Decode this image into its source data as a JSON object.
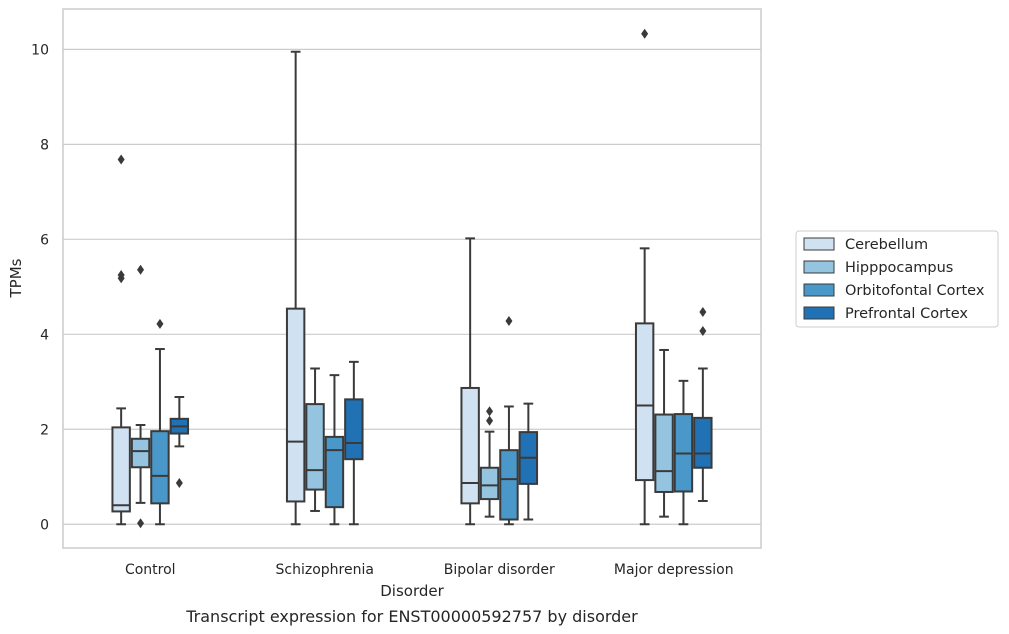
{
  "caption": "Transcript expression for ENST00000592757 by disorder",
  "chart_data": {
    "type": "box",
    "xlabel": "Disorder",
    "ylabel": "TPMs",
    "ylim": [
      -0.5,
      10.85
    ],
    "yticks": [
      0,
      2,
      4,
      6,
      8,
      10
    ],
    "grid": "horizontal",
    "legend_placement": "right",
    "categories": [
      "Control",
      "Schizophrenia",
      "Bipolar disorder",
      "Major depression"
    ],
    "series": [
      {
        "name": "Cerebellum",
        "color": "#d0e1f2",
        "boxes": [
          {
            "whisker_low": 0.0,
            "q1": 0.27,
            "median": 0.4,
            "q3": 2.04,
            "whisker_high": 2.44,
            "outliers": [
              7.68,
              5.25,
              5.18
            ]
          },
          {
            "whisker_low": 0.0,
            "q1": 0.48,
            "median": 1.74,
            "q3": 4.54,
            "whisker_high": 9.95,
            "outliers": []
          },
          {
            "whisker_low": 0.0,
            "q1": 0.44,
            "median": 0.87,
            "q3": 2.87,
            "whisker_high": 6.02,
            "outliers": []
          },
          {
            "whisker_low": 0.0,
            "q1": 0.93,
            "median": 2.5,
            "q3": 4.23,
            "whisker_high": 5.81,
            "outliers": [
              10.33
            ]
          }
        ]
      },
      {
        "name": "Hipppocampus",
        "color": "#94c4df",
        "boxes": [
          {
            "whisker_low": 0.45,
            "q1": 1.2,
            "median": 1.54,
            "q3": 1.8,
            "whisker_high": 2.09,
            "outliers": [
              5.36,
              0.02
            ]
          },
          {
            "whisker_low": 0.28,
            "q1": 0.73,
            "median": 1.14,
            "q3": 2.53,
            "whisker_high": 3.28,
            "outliers": []
          },
          {
            "whisker_low": 0.16,
            "q1": 0.53,
            "median": 0.82,
            "q3": 1.19,
            "whisker_high": 1.95,
            "outliers": [
              2.38,
              2.18
            ]
          },
          {
            "whisker_low": 0.16,
            "q1": 0.68,
            "median": 1.12,
            "q3": 2.31,
            "whisker_high": 3.67,
            "outliers": []
          }
        ]
      },
      {
        "name": "Orbitofontal Cortex",
        "color": "#4a98c9",
        "boxes": [
          {
            "whisker_low": 0.0,
            "q1": 0.44,
            "median": 1.02,
            "q3": 1.96,
            "whisker_high": 3.69,
            "outliers": [
              4.22
            ]
          },
          {
            "whisker_low": 0.0,
            "q1": 0.36,
            "median": 1.56,
            "q3": 1.84,
            "whisker_high": 3.14,
            "outliers": []
          },
          {
            "whisker_low": 0.0,
            "q1": 0.1,
            "median": 0.95,
            "q3": 1.56,
            "whisker_high": 2.48,
            "outliers": [
              4.28
            ]
          },
          {
            "whisker_low": 0.0,
            "q1": 0.69,
            "median": 1.49,
            "q3": 2.32,
            "whisker_high": 3.02,
            "outliers": []
          }
        ]
      },
      {
        "name": "Prefrontal Cortex",
        "color": "#2171b5",
        "boxes": [
          {
            "whisker_low": 1.64,
            "q1": 1.91,
            "median": 2.06,
            "q3": 2.22,
            "whisker_high": 2.68,
            "outliers": [
              0.87
            ]
          },
          {
            "whisker_low": 0.0,
            "q1": 1.37,
            "median": 1.71,
            "q3": 2.63,
            "whisker_high": 3.42,
            "outliers": []
          },
          {
            "whisker_low": 0.1,
            "q1": 0.85,
            "median": 1.4,
            "q3": 1.94,
            "whisker_high": 2.54,
            "outliers": []
          },
          {
            "whisker_low": 0.49,
            "q1": 1.19,
            "median": 1.49,
            "q3": 2.24,
            "whisker_high": 3.28,
            "outliers": [
              4.47,
              4.07
            ]
          }
        ]
      }
    ]
  }
}
